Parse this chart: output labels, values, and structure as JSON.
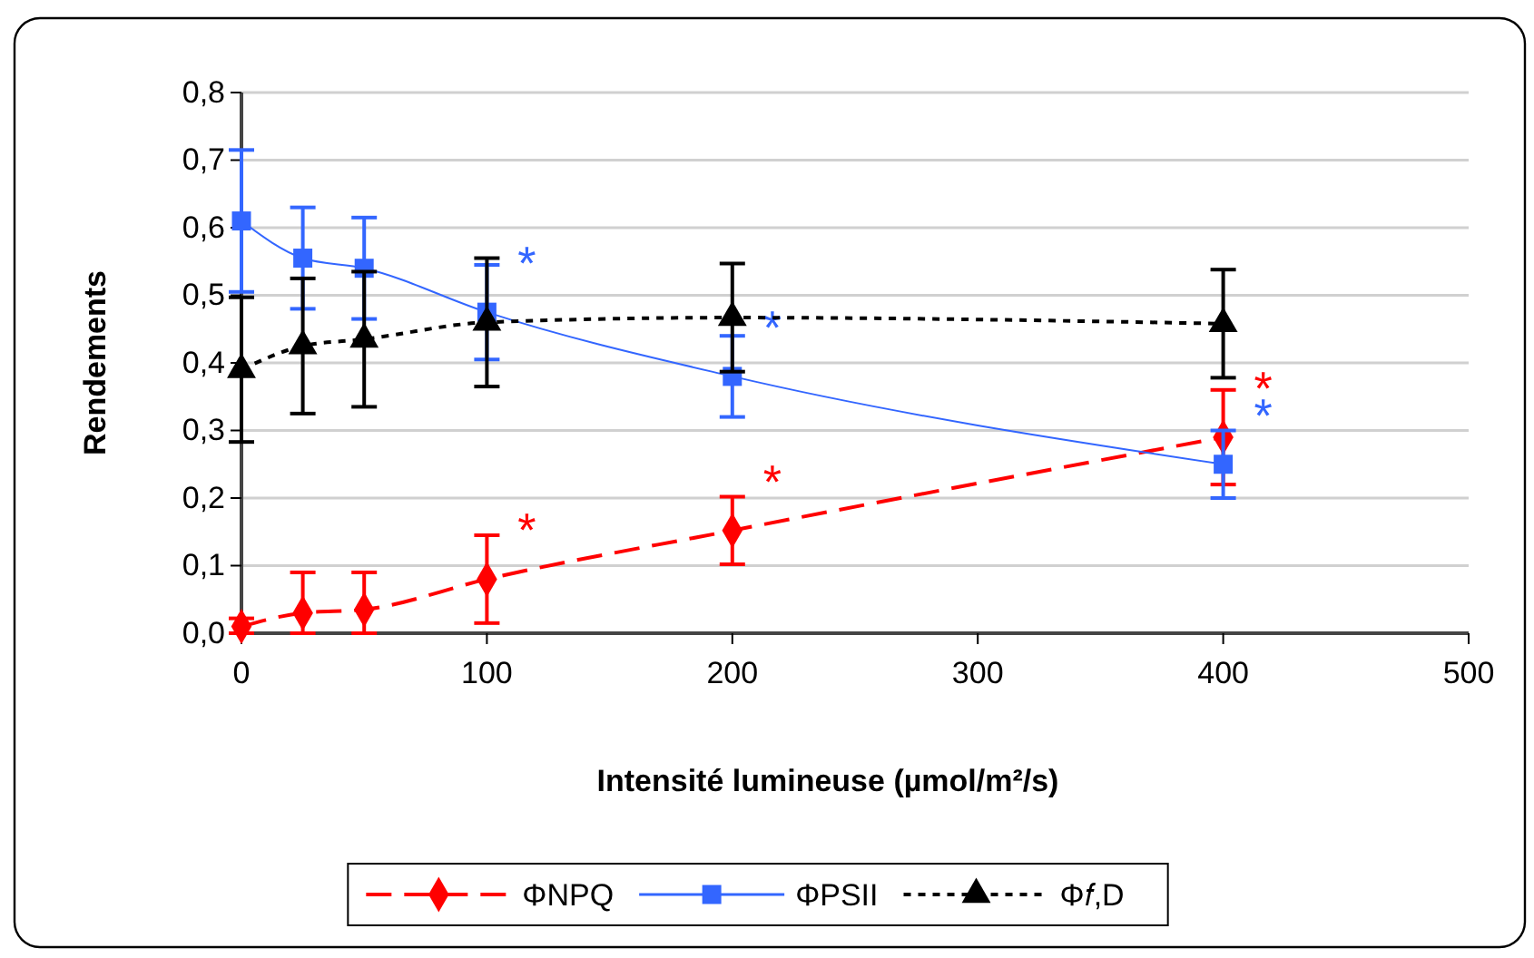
{
  "chart_data": {
    "type": "line",
    "xlabel": "Intensité lumineuse (µmol/m²/s)",
    "ylabel": "Rendements",
    "x": [
      0,
      25,
      50,
      100,
      200,
      400
    ],
    "xlim": [
      0,
      500
    ],
    "xticks": [
      0,
      100,
      200,
      300,
      400,
      500
    ],
    "ylim": [
      0,
      0.8
    ],
    "yticks": [
      {
        "value": 0,
        "label": "0,0"
      },
      {
        "value": 0.1,
        "label": "0,1"
      },
      {
        "value": 0.2,
        "label": "0,2"
      },
      {
        "value": 0.3,
        "label": "0,3"
      },
      {
        "value": 0.4,
        "label": "0,4"
      },
      {
        "value": 0.5,
        "label": "0,5"
      },
      {
        "value": 0.6,
        "label": "0,6"
      },
      {
        "value": 0.7,
        "label": "0,7"
      },
      {
        "value": 0.8,
        "label": "0,8"
      }
    ],
    "grid": "y",
    "legend": "bottom",
    "series": [
      {
        "name": "ΦNPQ",
        "color": "#ff0000",
        "marker": "diamond",
        "line_style": "dashed",
        "values": [
          0.01,
          0.03,
          0.035,
          0.08,
          0.152,
          0.29
        ],
        "errors": [
          [
            0,
            0.022
          ],
          [
            0,
            0.09
          ],
          [
            0,
            0.09
          ],
          0.065,
          0.05,
          0.07
        ],
        "value_labels": [
          null,
          null,
          null,
          "*",
          "*",
          "*"
        ]
      },
      {
        "name": "ΦPSII",
        "color": "#3366ff",
        "marker": "square",
        "line_style": "solid",
        "values": [
          0.61,
          0.555,
          0.54,
          0.475,
          0.38,
          0.25
        ],
        "errors": [
          0.105,
          0.075,
          0.075,
          0.07,
          0.06,
          0.05
        ],
        "value_labels": [
          null,
          null,
          null,
          "*",
          "*",
          "*"
        ]
      },
      {
        "name": "Φ𝑓,D",
        "color": "#000000",
        "marker": "triangle",
        "line_style": "dotted",
        "values": [
          0.39,
          0.425,
          0.435,
          0.46,
          0.467,
          0.458
        ],
        "errors": [
          0.107,
          0.1,
          0.1,
          0.095,
          0.08,
          0.08
        ]
      }
    ]
  }
}
